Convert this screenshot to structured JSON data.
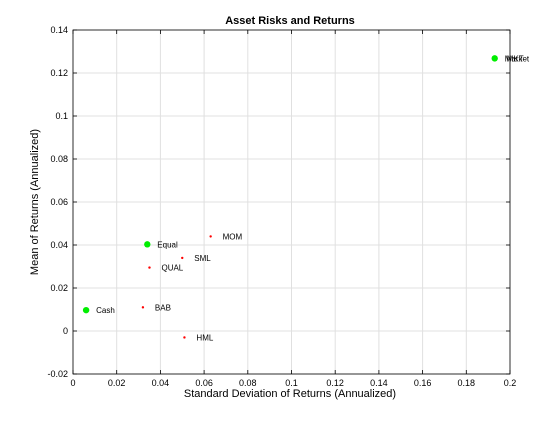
{
  "chart_data": {
    "type": "scatter",
    "title": "Asset Risks and Returns",
    "xlabel": "Standard Deviation of Returns (Annualized)",
    "ylabel": "Mean of Returns (Annualized)",
    "xlim": [
      0,
      0.2
    ],
    "ylim": [
      -0.02,
      0.14
    ],
    "xticks": [
      "0",
      "0.02",
      "0.04",
      "0.06",
      "0.08",
      "0.1",
      "0.12",
      "0.14",
      "0.16",
      "0.18",
      "0.2"
    ],
    "yticks": [
      "-0.02",
      "0",
      "0.02",
      "0.04",
      "0.06",
      "0.08",
      "0.1",
      "0.12",
      "0.14"
    ],
    "grid": true,
    "colors": {
      "asset": "#ff0000",
      "portfolio": "#00ee00"
    },
    "series": [
      {
        "kind": "asset",
        "points": [
          {
            "label": "MOM",
            "x": 0.063,
            "y": 0.044
          },
          {
            "label": "SML",
            "x": 0.05,
            "y": 0.034
          },
          {
            "label": "QUAL",
            "x": 0.035,
            "y": 0.0295
          },
          {
            "label": "BAB",
            "x": 0.032,
            "y": 0.011
          },
          {
            "label": "HML",
            "x": 0.051,
            "y": -0.003
          },
          {
            "label": "MKT",
            "x": 0.193,
            "y": 0.1268
          }
        ]
      },
      {
        "kind": "portfolio",
        "points": [
          {
            "label": "Equal",
            "x": 0.034,
            "y": 0.0403
          },
          {
            "label": "Cash",
            "x": 0.006,
            "y": 0.0097
          },
          {
            "label": "Market",
            "x": 0.193,
            "y": 0.1268
          }
        ]
      }
    ]
  }
}
